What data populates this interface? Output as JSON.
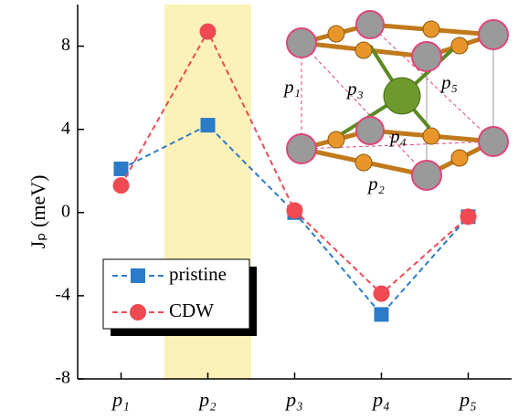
{
  "chart_data": {
    "type": "line",
    "y_label": "Jₚ (meV)",
    "categories": [
      "p₁",
      "p₂",
      "p₃",
      "p₄",
      "p₅"
    ],
    "series": [
      {
        "name": "pristine",
        "color": "#2b7bc8",
        "marker": "square",
        "values": [
          2.1,
          4.2,
          0.0,
          -4.9,
          -0.2
        ]
      },
      {
        "name": "CDW",
        "color": "#ef4a52",
        "marker": "circle",
        "values": [
          1.3,
          8.7,
          0.1,
          -3.9,
          -0.2
        ]
      }
    ],
    "ylim": [
      -8,
      10
    ],
    "yticks": [
      -8,
      -4,
      0,
      4,
      8
    ],
    "shade": {
      "category": "p₂",
      "color": "#fcf1b8"
    },
    "legend": "lower left",
    "inset_labels": [
      "p₁",
      "p₂",
      "p₃",
      "p₄",
      "p₅"
    ]
  }
}
